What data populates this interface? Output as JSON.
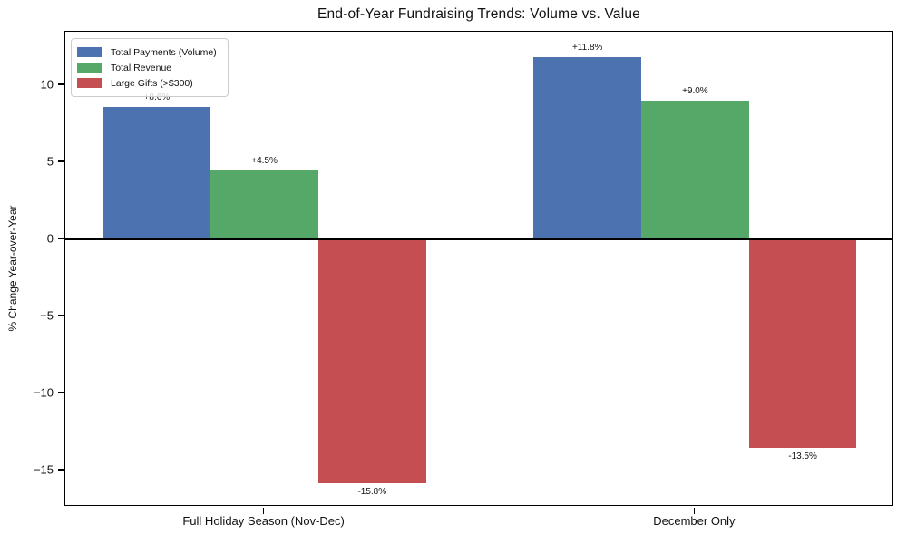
{
  "chart_data": {
    "type": "bar",
    "title": "End-of-Year Fundraising Trends: Volume vs. Value",
    "xlabel": "",
    "ylabel": "% Change Year-over-Year",
    "categories": [
      "Full Holiday Season (Nov-Dec)",
      "December Only"
    ],
    "series": [
      {
        "name": "Total Payments (Volume)",
        "color": "#4C72B0",
        "values": [
          8.6,
          11.8
        ],
        "labels": [
          "+8.6%",
          "+11.8%"
        ]
      },
      {
        "name": "Total Revenue",
        "color": "#55A868",
        "values": [
          4.5,
          9.0
        ],
        "labels": [
          "+4.5%",
          "+9.0%"
        ]
      },
      {
        "name": "Large Gifts (>$300)",
        "color": "#C44E52",
        "values": [
          -15.8,
          -13.5
        ],
        "labels": [
          "-15.8%",
          "-13.5%"
        ]
      }
    ],
    "yticks": [
      10,
      5,
      0,
      -5,
      -10,
      -15
    ],
    "ylim": [
      -17.35,
      13.47
    ],
    "legend_position": "upper left",
    "grid": false,
    "zero_line": true,
    "note_overlap": "+8.6% label partially hidden behind legend"
  }
}
